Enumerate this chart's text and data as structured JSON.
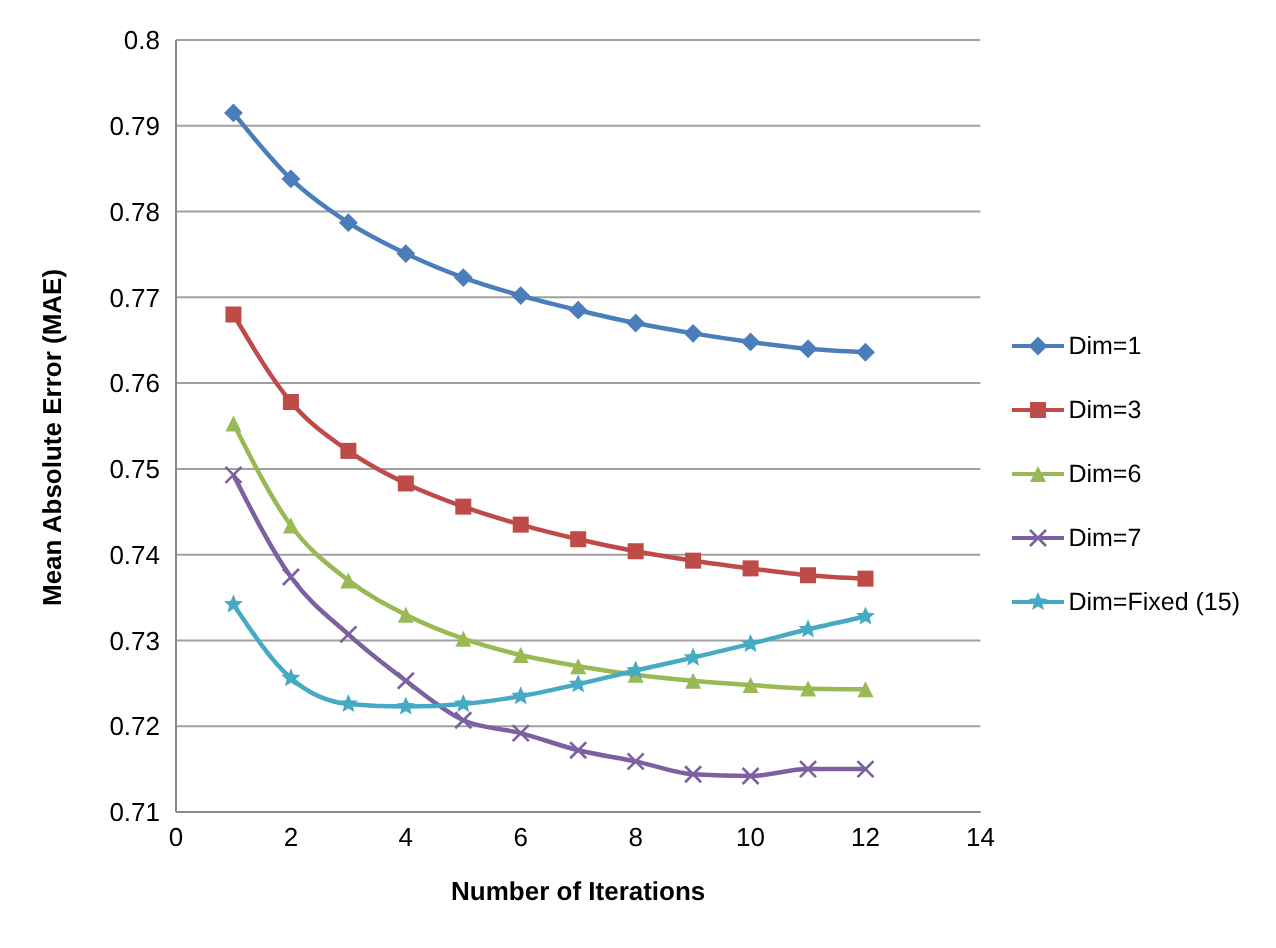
{
  "chart_data": {
    "type": "line",
    "xlabel": "Number of Iterations",
    "ylabel": "Mean Absolute Error (MAE)",
    "x": [
      1,
      2,
      3,
      4,
      5,
      6,
      7,
      8,
      9,
      10,
      11,
      12
    ],
    "xlim": [
      0,
      14
    ],
    "xticks": [
      0,
      2,
      4,
      6,
      8,
      10,
      12,
      14
    ],
    "ylim": [
      0.71,
      0.8
    ],
    "yticks": [
      0.71,
      0.72,
      0.73,
      0.74,
      0.75,
      0.76,
      0.77,
      0.78,
      0.79,
      0.8
    ],
    "grid": "y",
    "legend": "right",
    "series": [
      {
        "name": "Dim=1",
        "color": "#4a7ebb",
        "marker": "diamond",
        "values": [
          0.7915,
          0.7838,
          0.7787,
          0.7751,
          0.7723,
          0.7702,
          0.7685,
          0.767,
          0.7658,
          0.7648,
          0.764,
          0.7636
        ]
      },
      {
        "name": "Dim=3",
        "color": "#be4b48",
        "marker": "square",
        "values": [
          0.768,
          0.7578,
          0.7521,
          0.7483,
          0.7456,
          0.7435,
          0.7418,
          0.7404,
          0.7393,
          0.7384,
          0.7376,
          0.7372
        ]
      },
      {
        "name": "Dim=6",
        "color": "#98b954",
        "marker": "triangle",
        "values": [
          0.7553,
          0.7434,
          0.737,
          0.733,
          0.7302,
          0.7283,
          0.727,
          0.726,
          0.7253,
          0.7248,
          0.7244,
          0.7243
        ]
      },
      {
        "name": "Dim=7",
        "color": "#7d60a0",
        "marker": "cross",
        "values": [
          0.7493,
          0.7374,
          0.7307,
          0.7253,
          0.7207,
          0.7192,
          0.7172,
          0.7159,
          0.7144,
          0.7142,
          0.715,
          0.715
        ]
      },
      {
        "name": "Dim=Fixed (15)",
        "color": "#46aac5",
        "marker": "star",
        "values": [
          0.7342,
          0.7256,
          0.7226,
          0.7223,
          0.7226,
          0.7235,
          0.7249,
          0.7265,
          0.728,
          0.7296,
          0.7313,
          0.7328
        ]
      }
    ]
  }
}
